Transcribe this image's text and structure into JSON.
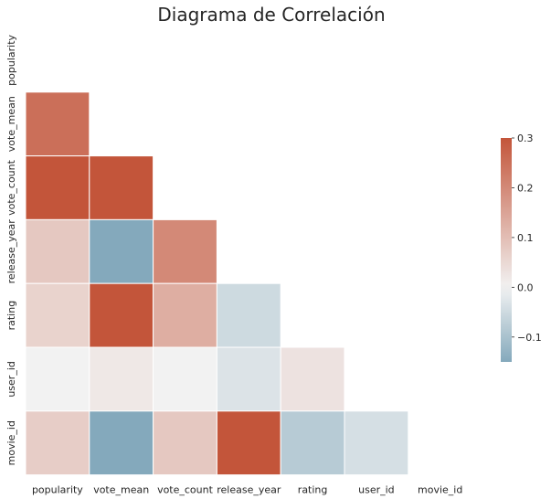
{
  "chart_data": {
    "type": "heatmap",
    "title": "Diagrama de Correlación",
    "xlabel": "",
    "ylabel": "",
    "variables": [
      "popularity",
      "vote_mean",
      "vote_count",
      "release_year",
      "rating",
      "user_id",
      "movie_id"
    ],
    "mask": "upper-triangle-and-diagonal",
    "values": [
      [
        null,
        null,
        null,
        null,
        null,
        null,
        null
      ],
      [
        0.25,
        null,
        null,
        null,
        null,
        null,
        null
      ],
      [
        0.3,
        0.3,
        null,
        null,
        null,
        null,
        null
      ],
      [
        0.08,
        -0.15,
        0.2,
        null,
        null,
        null,
        null
      ],
      [
        0.06,
        0.3,
        0.13,
        -0.05,
        null,
        null,
        null
      ],
      [
        0.0,
        0.02,
        0.0,
        -0.03,
        0.03,
        null,
        null
      ],
      [
        0.07,
        -0.15,
        0.08,
        0.3,
        -0.08,
        -0.04,
        null
      ]
    ],
    "colorbar": {
      "vmin": -0.15,
      "vmax": 0.3,
      "ticks": [
        0.3,
        0.2,
        0.1,
        0.0,
        -0.1
      ],
      "tick_labels": [
        "0.3",
        "0.2",
        "0.1",
        "0.0",
        "−0.1"
      ]
    },
    "colormap": {
      "negative": "#84a9bc",
      "center": "#f2f2f2",
      "positive": "#c3553a"
    },
    "grid": false,
    "cell_border_color": "#ffffff"
  }
}
